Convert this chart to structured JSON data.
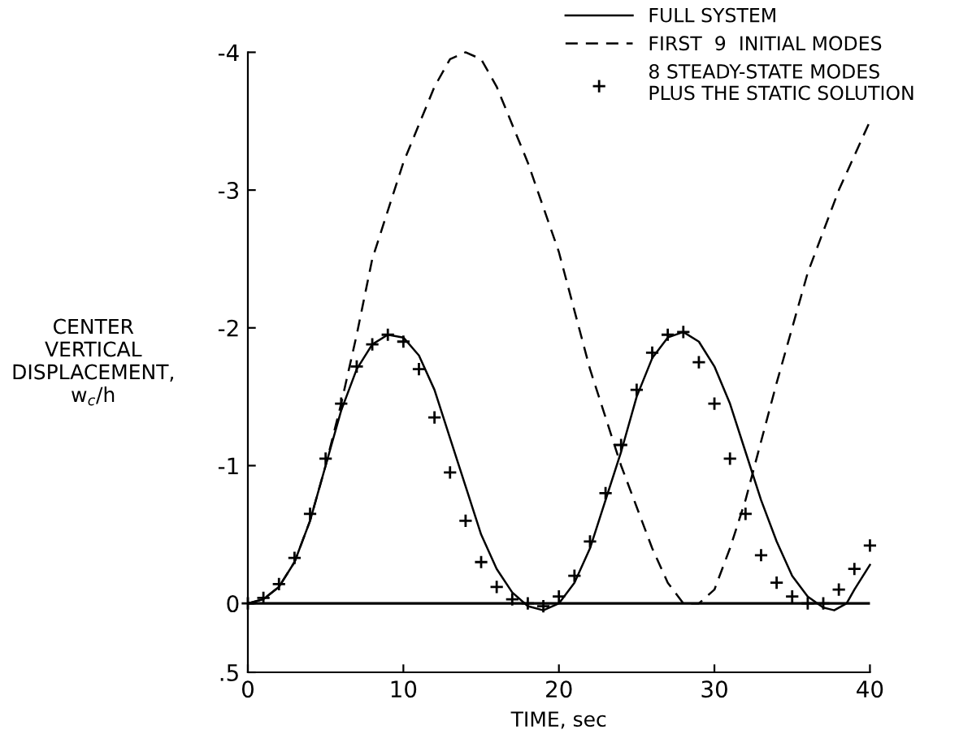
{
  "chart_data": {
    "type": "line",
    "xlabel": "TIME, sec",
    "ylabel": "CENTER\nVERTICAL\nDISPLACEMENT,\nw$_{c}$/h",
    "xlim": [
      0,
      40
    ],
    "xticks": [
      0,
      10,
      20,
      30,
      40
    ],
    "ylim": [
      0.5,
      -4
    ],
    "yticks": [
      {
        "value": 0.5,
        "label": ".5"
      },
      0,
      -1,
      -2,
      -3,
      -4
    ],
    "grid": false,
    "legend": "top right",
    "ref_lines": [
      {
        "axis": "y",
        "value": 0,
        "color": "#000000",
        "line_style": "solid"
      }
    ],
    "series": [
      {
        "name": "FULL SYSTEM",
        "color": "#000000",
        "line_style": "solid",
        "marker": "none",
        "x": [
          0,
          1,
          2,
          3,
          4,
          5,
          6,
          7,
          8,
          9,
          10,
          11,
          12,
          13,
          14,
          15,
          16,
          17,
          18,
          19,
          20,
          21,
          22,
          23,
          24,
          25,
          26,
          27,
          28,
          29,
          30,
          31,
          32,
          33,
          34,
          35,
          36,
          37,
          37.7,
          38.5,
          39,
          40
        ],
        "values": [
          0,
          -0.03,
          -0.12,
          -0.3,
          -0.6,
          -1.0,
          -1.4,
          -1.7,
          -1.88,
          -1.95,
          -1.93,
          -1.8,
          -1.55,
          -1.2,
          -0.85,
          -0.5,
          -0.25,
          -0.08,
          0.02,
          0.05,
          0.0,
          -0.15,
          -0.4,
          -0.75,
          -1.1,
          -1.5,
          -1.78,
          -1.93,
          -1.97,
          -1.9,
          -1.72,
          -1.45,
          -1.1,
          -0.75,
          -0.45,
          -0.2,
          -0.05,
          0.03,
          0.05,
          0.0,
          -0.1,
          -0.28
        ]
      },
      {
        "name": "FIRST  9  INITIAL MODES",
        "color": "#000000",
        "line_style": "dashed",
        "marker": "none",
        "x": [
          0,
          1,
          2,
          3,
          4,
          5,
          6,
          7,
          8,
          10,
          12,
          13,
          14,
          15,
          16,
          18,
          20,
          22,
          24,
          26,
          27,
          28,
          29,
          30,
          31,
          32,
          34,
          36,
          38,
          40
        ],
        "values": [
          0,
          -0.03,
          -0.12,
          -0.3,
          -0.6,
          -1.0,
          -1.45,
          -1.95,
          -2.5,
          -3.2,
          -3.75,
          -3.95,
          -4.0,
          -3.95,
          -3.75,
          -3.2,
          -2.55,
          -1.7,
          -1.0,
          -0.4,
          -0.15,
          0.0,
          0.0,
          -0.1,
          -0.4,
          -0.75,
          -1.6,
          -2.4,
          -3.0,
          -3.5
        ]
      },
      {
        "name": "8 STEADY-STATE MODES\nPLUS THE STATIC SOLUTION",
        "type": "scatter",
        "color": "#000000",
        "marker": "cross",
        "x": [
          0,
          1,
          2,
          3,
          4,
          5,
          6,
          7,
          8,
          9,
          10,
          11,
          12,
          13,
          14,
          15,
          16,
          17,
          18,
          19,
          20,
          21,
          22,
          23,
          24,
          25,
          26,
          27,
          28,
          29,
          30,
          31,
          32,
          33,
          34,
          35,
          36,
          37,
          38,
          39,
          40
        ],
        "values": [
          0,
          -0.04,
          -0.14,
          -0.33,
          -0.65,
          -1.05,
          -1.45,
          -1.72,
          -1.88,
          -1.95,
          -1.9,
          -1.7,
          -1.35,
          -0.95,
          -0.6,
          -0.3,
          -0.12,
          -0.03,
          0.0,
          0.02,
          -0.05,
          -0.2,
          -0.45,
          -0.8,
          -1.15,
          -1.55,
          -1.82,
          -1.95,
          -1.97,
          -1.75,
          -1.45,
          -1.05,
          -0.65,
          -0.35,
          -0.15,
          -0.05,
          0.0,
          0.0,
          -0.1,
          -0.25,
          -0.42
        ]
      }
    ]
  }
}
